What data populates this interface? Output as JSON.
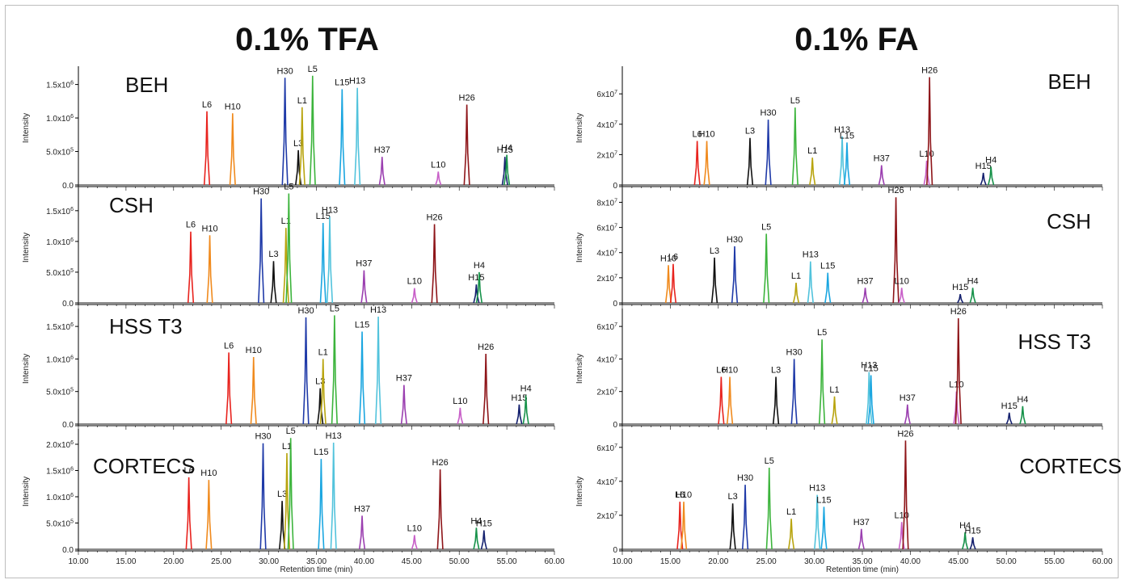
{
  "figure": {
    "left_title": "0.1% TFA",
    "right_title": "0.1% FA",
    "x_axis_label": "Retention time (min)",
    "y_axis_label": "Intensity"
  },
  "peak_colors": {
    "L6": "#e8231e",
    "H10": "#f08a1d",
    "H30": "#1f3aa8",
    "L3": "#111111",
    "L1": "#b8a40e",
    "L5": "#3cb43c",
    "L15": "#1aa6e0",
    "H13": "#52c3dc",
    "H37": "#9b3fb0",
    "L10": "#c85fc8",
    "H26": "#8e1519",
    "H15": "#14206e",
    "H4": "#17924a"
  },
  "chart_data": [
    {
      "type": "line",
      "group": "0.1% TFA",
      "column": "BEH",
      "xlim": [
        10,
        60
      ],
      "ylim": [
        0,
        1.7
      ],
      "y_ticks": [
        0,
        0.5,
        1.0,
        1.5
      ],
      "y_tick_labels": [
        "0.0",
        "5.0x10^5",
        "1.0x10^6",
        "1.5x10^6"
      ],
      "ylabel": "Intensity",
      "peaks": [
        {
          "label": "L6",
          "rt": 23.5,
          "height": 1.1
        },
        {
          "label": "H10",
          "rt": 26.2,
          "height": 1.07
        },
        {
          "label": "H30",
          "rt": 31.7,
          "height": 1.6
        },
        {
          "label": "L3",
          "rt": 33.1,
          "height": 0.52
        },
        {
          "label": "L1",
          "rt": 33.5,
          "height": 1.16
        },
        {
          "label": "L5",
          "rt": 34.6,
          "height": 1.63
        },
        {
          "label": "L15",
          "rt": 37.7,
          "height": 1.43
        },
        {
          "label": "H13",
          "rt": 39.3,
          "height": 1.45
        },
        {
          "label": "H37",
          "rt": 41.9,
          "height": 0.42
        },
        {
          "label": "L10",
          "rt": 47.8,
          "height": 0.2
        },
        {
          "label": "H26",
          "rt": 50.8,
          "height": 1.2
        },
        {
          "label": "H15",
          "rt": 54.8,
          "height": 0.42
        },
        {
          "label": "H4",
          "rt": 55.0,
          "height": 0.45
        }
      ]
    },
    {
      "type": "line",
      "group": "0.1% TFA",
      "column": "CSH",
      "xlim": [
        10,
        60
      ],
      "ylim": [
        0,
        1.8
      ],
      "y_ticks": [
        0,
        0.5,
        1.0,
        1.5
      ],
      "y_tick_labels": [
        "0.0",
        "5.0x10^5",
        "1.0x10^6",
        "1.5x10^6"
      ],
      "ylabel": "Intensity",
      "peaks": [
        {
          "label": "L6",
          "rt": 21.8,
          "height": 1.16
        },
        {
          "label": "H10",
          "rt": 23.8,
          "height": 1.1
        },
        {
          "label": "H30",
          "rt": 29.2,
          "height": 1.7
        },
        {
          "label": "L3",
          "rt": 30.5,
          "height": 0.68
        },
        {
          "label": "L1",
          "rt": 31.8,
          "height": 1.22
        },
        {
          "label": "L5",
          "rt": 32.1,
          "height": 1.78
        },
        {
          "label": "L15",
          "rt": 35.7,
          "height": 1.3
        },
        {
          "label": "H13",
          "rt": 36.4,
          "height": 1.4
        },
        {
          "label": "H37",
          "rt": 40.0,
          "height": 0.53
        },
        {
          "label": "L10",
          "rt": 45.3,
          "height": 0.24
        },
        {
          "label": "H26",
          "rt": 47.4,
          "height": 1.28
        },
        {
          "label": "H15",
          "rt": 51.8,
          "height": 0.3
        },
        {
          "label": "H4",
          "rt": 52.1,
          "height": 0.5
        }
      ]
    },
    {
      "type": "line",
      "group": "0.1% TFA",
      "column": "HSS T3",
      "xlim": [
        10,
        60
      ],
      "ylim": [
        0,
        1.7
      ],
      "y_ticks": [
        0,
        0.5,
        1.0,
        1.5
      ],
      "y_tick_labels": [
        "0.0",
        "5.0x10^5",
        "1.0x10^6",
        "1.5x10^6"
      ],
      "ylabel": "Intensity",
      "peaks": [
        {
          "label": "L6",
          "rt": 25.8,
          "height": 1.1
        },
        {
          "label": "H10",
          "rt": 28.4,
          "height": 1.03
        },
        {
          "label": "H30",
          "rt": 33.9,
          "height": 1.64
        },
        {
          "label": "L3",
          "rt": 35.4,
          "height": 0.55
        },
        {
          "label": "L1",
          "rt": 35.7,
          "height": 1.0
        },
        {
          "label": "L5",
          "rt": 36.9,
          "height": 1.67
        },
        {
          "label": "L15",
          "rt": 39.8,
          "height": 1.42
        },
        {
          "label": "H13",
          "rt": 41.5,
          "height": 1.65
        },
        {
          "label": "H37",
          "rt": 44.2,
          "height": 0.6
        },
        {
          "label": "L10",
          "rt": 50.1,
          "height": 0.25
        },
        {
          "label": "H26",
          "rt": 52.8,
          "height": 1.08
        },
        {
          "label": "H15",
          "rt": 56.3,
          "height": 0.3
        },
        {
          "label": "H4",
          "rt": 57.0,
          "height": 0.44
        }
      ]
    },
    {
      "type": "line",
      "group": "0.1% TFA",
      "column": "CORTECS",
      "xlim": [
        10,
        60
      ],
      "ylim": [
        0,
        2.2
      ],
      "y_ticks": [
        0,
        0.5,
        1.0,
        1.5,
        2.0
      ],
      "y_tick_labels": [
        "0.0",
        "5.0x10^5",
        "1.0x10^6",
        "1.5x10^6",
        "2.0x10^6"
      ],
      "ylabel": "Intensity",
      "peaks": [
        {
          "label": "L6",
          "rt": 21.6,
          "height": 1.37
        },
        {
          "label": "H10",
          "rt": 23.7,
          "height": 1.32
        },
        {
          "label": "H30",
          "rt": 29.4,
          "height": 2.02
        },
        {
          "label": "L3",
          "rt": 31.4,
          "height": 0.92
        },
        {
          "label": "L1",
          "rt": 31.9,
          "height": 1.83
        },
        {
          "label": "L5",
          "rt": 32.3,
          "height": 2.12
        },
        {
          "label": "L15",
          "rt": 35.5,
          "height": 1.72
        },
        {
          "label": "H13",
          "rt": 36.8,
          "height": 2.03
        },
        {
          "label": "H37",
          "rt": 39.8,
          "height": 0.64
        },
        {
          "label": "L10",
          "rt": 45.3,
          "height": 0.27
        },
        {
          "label": "H26",
          "rt": 48.0,
          "height": 1.52
        },
        {
          "label": "H4",
          "rt": 51.8,
          "height": 0.41
        },
        {
          "label": "H15",
          "rt": 52.6,
          "height": 0.36
        }
      ]
    },
    {
      "type": "line",
      "group": "0.1% FA",
      "column": "BEH",
      "xlim": [
        10,
        60
      ],
      "ylim": [
        0,
        75
      ],
      "y_ticks": [
        0,
        20,
        40,
        60
      ],
      "y_tick_labels": [
        "0",
        "2x10^7",
        "4x10^7",
        "6x10^7"
      ],
      "ylabel": "Intensity",
      "peaks": [
        {
          "label": "L6",
          "rt": 17.8,
          "height": 29
        },
        {
          "label": "H10",
          "rt": 18.8,
          "height": 29
        },
        {
          "label": "L3",
          "rt": 23.3,
          "height": 31
        },
        {
          "label": "H30",
          "rt": 25.2,
          "height": 43
        },
        {
          "label": "L5",
          "rt": 28.0,
          "height": 51
        },
        {
          "label": "L1",
          "rt": 29.8,
          "height": 18
        },
        {
          "label": "H13",
          "rt": 32.9,
          "height": 32
        },
        {
          "label": "L15",
          "rt": 33.4,
          "height": 28
        },
        {
          "label": "H37",
          "rt": 37.0,
          "height": 13
        },
        {
          "label": "L10",
          "rt": 41.7,
          "height": 16
        },
        {
          "label": "H26",
          "rt": 42.0,
          "height": 71
        },
        {
          "label": "H15",
          "rt": 47.6,
          "height": 8
        },
        {
          "label": "H4",
          "rt": 48.4,
          "height": 12
        }
      ]
    },
    {
      "type": "line",
      "group": "0.1% FA",
      "column": "CSH",
      "xlim": [
        10,
        60
      ],
      "ylim": [
        0,
        88
      ],
      "y_ticks": [
        0,
        20,
        40,
        60,
        80
      ],
      "y_tick_labels": [
        "0",
        "2x10^7",
        "4x10^7",
        "6x10^7",
        "8x10^7"
      ],
      "ylabel": "Intensity",
      "peaks": [
        {
          "label": "H10",
          "rt": 14.8,
          "height": 30
        },
        {
          "label": "L6",
          "rt": 15.3,
          "height": 31
        },
        {
          "label": "L3",
          "rt": 19.6,
          "height": 36
        },
        {
          "label": "H30",
          "rt": 21.7,
          "height": 45
        },
        {
          "label": "L5",
          "rt": 25.0,
          "height": 55
        },
        {
          "label": "L1",
          "rt": 28.1,
          "height": 16
        },
        {
          "label": "H13",
          "rt": 29.6,
          "height": 33
        },
        {
          "label": "L15",
          "rt": 31.4,
          "height": 24
        },
        {
          "label": "H37",
          "rt": 35.3,
          "height": 12
        },
        {
          "label": "H26",
          "rt": 38.5,
          "height": 84
        },
        {
          "label": "L10",
          "rt": 39.1,
          "height": 12
        },
        {
          "label": "H15",
          "rt": 45.2,
          "height": 7
        },
        {
          "label": "H4",
          "rt": 46.5,
          "height": 12
        }
      ]
    },
    {
      "type": "line",
      "group": "0.1% FA",
      "column": "HSS T3",
      "xlim": [
        10,
        60
      ],
      "ylim": [
        0,
        68
      ],
      "y_ticks": [
        0,
        20,
        40,
        60
      ],
      "y_tick_labels": [
        "0",
        "2x10^7",
        "4x10^7",
        "6x10^7"
      ],
      "ylabel": "Intensity",
      "peaks": [
        {
          "label": "L6",
          "rt": 20.3,
          "height": 29
        },
        {
          "label": "H10",
          "rt": 21.2,
          "height": 29
        },
        {
          "label": "L3",
          "rt": 26.0,
          "height": 29
        },
        {
          "label": "H30",
          "rt": 27.9,
          "height": 40
        },
        {
          "label": "L5",
          "rt": 30.8,
          "height": 52
        },
        {
          "label": "L1",
          "rt": 32.1,
          "height": 17
        },
        {
          "label": "H13",
          "rt": 35.7,
          "height": 32
        },
        {
          "label": "L15",
          "rt": 35.9,
          "height": 30
        },
        {
          "label": "H37",
          "rt": 39.7,
          "height": 12
        },
        {
          "label": "L10",
          "rt": 44.8,
          "height": 20
        },
        {
          "label": "H26",
          "rt": 45.0,
          "height": 65
        },
        {
          "label": "H15",
          "rt": 50.3,
          "height": 7
        },
        {
          "label": "H4",
          "rt": 51.7,
          "height": 11
        }
      ]
    },
    {
      "type": "line",
      "group": "0.1% FA",
      "column": "CORTECS",
      "xlim": [
        10,
        60
      ],
      "ylim": [
        0,
        68
      ],
      "y_ticks": [
        0,
        20,
        40,
        60
      ],
      "y_tick_labels": [
        "0",
        "2x10^7",
        "4x10^7",
        "6x10^7"
      ],
      "ylabel": "Intensity",
      "x_ticks": [
        10,
        15,
        20,
        25,
        30,
        35,
        40,
        45,
        50,
        55,
        60
      ],
      "x_tick_labels": [
        "10.00",
        "15.00",
        "20.00",
        "25.00",
        "30.00",
        "35.00",
        "40.00",
        "45.00",
        "50.00",
        "55.00",
        "60.00"
      ],
      "xlabel": "Retention time (min)",
      "peaks": [
        {
          "label": "L6",
          "rt": 16.0,
          "height": 28
        },
        {
          "label": "H10",
          "rt": 16.4,
          "height": 28
        },
        {
          "label": "L3",
          "rt": 21.5,
          "height": 27
        },
        {
          "label": "H30",
          "rt": 22.8,
          "height": 38
        },
        {
          "label": "L5",
          "rt": 25.3,
          "height": 48
        },
        {
          "label": "L1",
          "rt": 27.6,
          "height": 18
        },
        {
          "label": "H13",
          "rt": 30.3,
          "height": 32
        },
        {
          "label": "L15",
          "rt": 31.0,
          "height": 25
        },
        {
          "label": "H37",
          "rt": 34.9,
          "height": 12
        },
        {
          "label": "L10",
          "rt": 39.1,
          "height": 16
        },
        {
          "label": "H26",
          "rt": 39.5,
          "height": 64
        },
        {
          "label": "H4",
          "rt": 45.7,
          "height": 10
        },
        {
          "label": "H15",
          "rt": 46.5,
          "height": 7
        }
      ]
    }
  ]
}
